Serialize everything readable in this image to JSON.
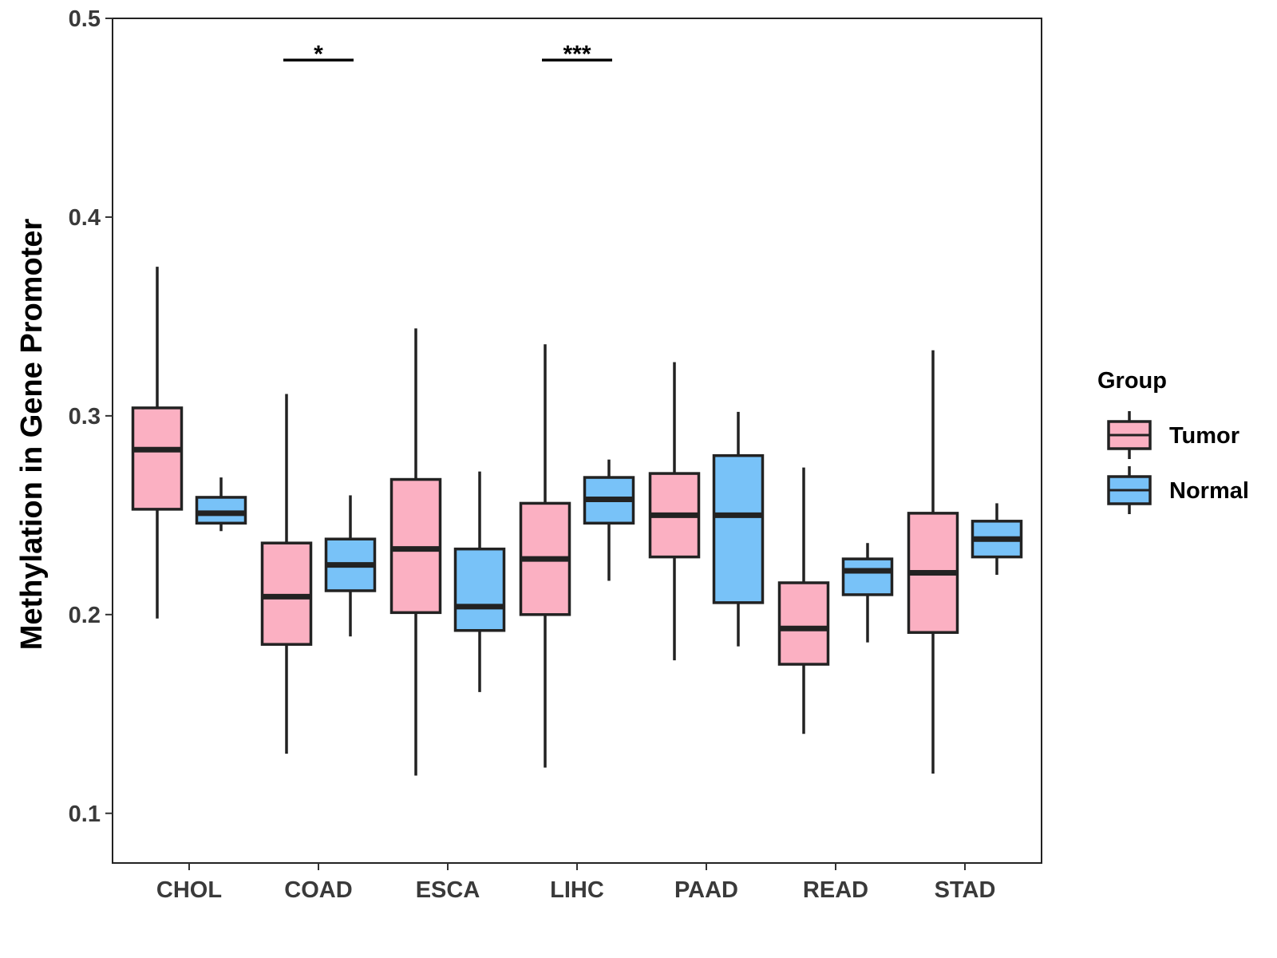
{
  "chart_data": {
    "type": "boxplot",
    "title": "",
    "xlabel": "",
    "ylabel": "Methylation in Gene Promoter",
    "ylim": [
      0.075,
      0.5
    ],
    "yticks": [
      0.1,
      0.2,
      0.3,
      0.4,
      0.5
    ],
    "ytick_labels": [
      "0.1",
      "0.2",
      "0.3",
      "0.4",
      "0.5"
    ],
    "categories": [
      "CHOL",
      "COAD",
      "ESCA",
      "LIHC",
      "PAAD",
      "READ",
      "STAD"
    ],
    "legend": {
      "title": "Group",
      "position": "right",
      "entries": [
        {
          "name": "Tumor",
          "color": "#fbb0c2"
        },
        {
          "name": "Normal",
          "color": "#78c2f8"
        }
      ]
    },
    "series": [
      {
        "name": "Tumor",
        "color": "#fbb0c2",
        "boxes": [
          {
            "min": 0.198,
            "q1": 0.253,
            "median": 0.283,
            "q3": 0.304,
            "max": 0.375
          },
          {
            "min": 0.13,
            "q1": 0.185,
            "median": 0.209,
            "q3": 0.236,
            "max": 0.311
          },
          {
            "min": 0.119,
            "q1": 0.201,
            "median": 0.233,
            "q3": 0.268,
            "max": 0.344
          },
          {
            "min": 0.123,
            "q1": 0.2,
            "median": 0.228,
            "q3": 0.256,
            "max": 0.336
          },
          {
            "min": 0.177,
            "q1": 0.229,
            "median": 0.25,
            "q3": 0.271,
            "max": 0.327
          },
          {
            "min": 0.14,
            "q1": 0.175,
            "median": 0.193,
            "q3": 0.216,
            "max": 0.274
          },
          {
            "min": 0.12,
            "q1": 0.191,
            "median": 0.221,
            "q3": 0.251,
            "max": 0.333
          }
        ]
      },
      {
        "name": "Normal",
        "color": "#78c2f8",
        "boxes": [
          {
            "min": 0.242,
            "q1": 0.246,
            "median": 0.251,
            "q3": 0.259,
            "max": 0.269
          },
          {
            "min": 0.189,
            "q1": 0.212,
            "median": 0.225,
            "q3": 0.238,
            "max": 0.26
          },
          {
            "min": 0.161,
            "q1": 0.192,
            "median": 0.204,
            "q3": 0.233,
            "max": 0.272
          },
          {
            "min": 0.217,
            "q1": 0.246,
            "median": 0.258,
            "q3": 0.269,
            "max": 0.278
          },
          {
            "min": 0.184,
            "q1": 0.206,
            "median": 0.25,
            "q3": 0.28,
            "max": 0.302
          },
          {
            "min": 0.186,
            "q1": 0.21,
            "median": 0.222,
            "q3": 0.228,
            "max": 0.236
          },
          {
            "min": 0.22,
            "q1": 0.229,
            "median": 0.238,
            "q3": 0.247,
            "max": 0.256
          }
        ]
      }
    ],
    "annotations": [
      {
        "category": "COAD",
        "label": "*",
        "y": 0.479
      },
      {
        "category": "LIHC",
        "label": "***",
        "y": 0.479
      }
    ]
  }
}
